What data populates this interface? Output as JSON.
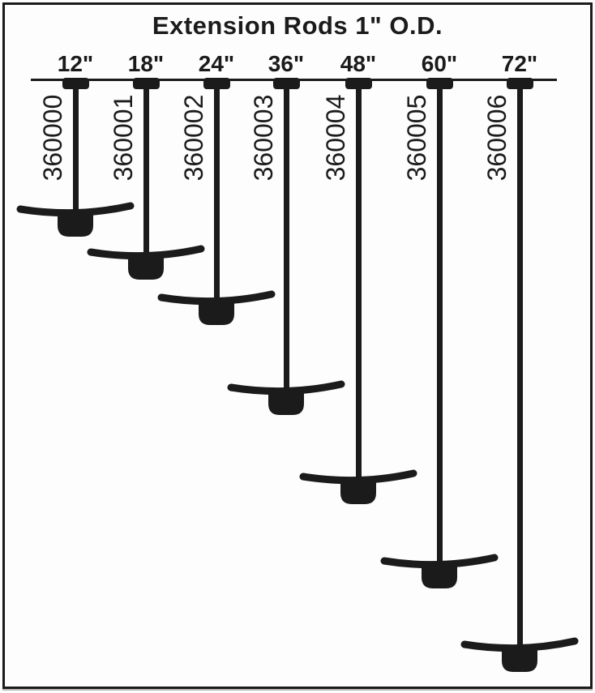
{
  "title": "Extension Rods 1\" O.D.",
  "colors": {
    "ink": "#1b1b1b",
    "paper": "#fdfdfd"
  },
  "rods": [
    {
      "size_label": "12\"",
      "length_in": 12,
      "part_number": "360000"
    },
    {
      "size_label": "18\"",
      "length_in": 18,
      "part_number": "360001"
    },
    {
      "size_label": "24\"",
      "length_in": 24,
      "part_number": "360002"
    },
    {
      "size_label": "36\"",
      "length_in": 36,
      "part_number": "360003"
    },
    {
      "size_label": "48\"",
      "length_in": 48,
      "part_number": "360004"
    },
    {
      "size_label": "60\"",
      "length_in": 60,
      "part_number": "360005"
    },
    {
      "size_label": "72\"",
      "length_in": 72,
      "part_number": "360006"
    }
  ]
}
